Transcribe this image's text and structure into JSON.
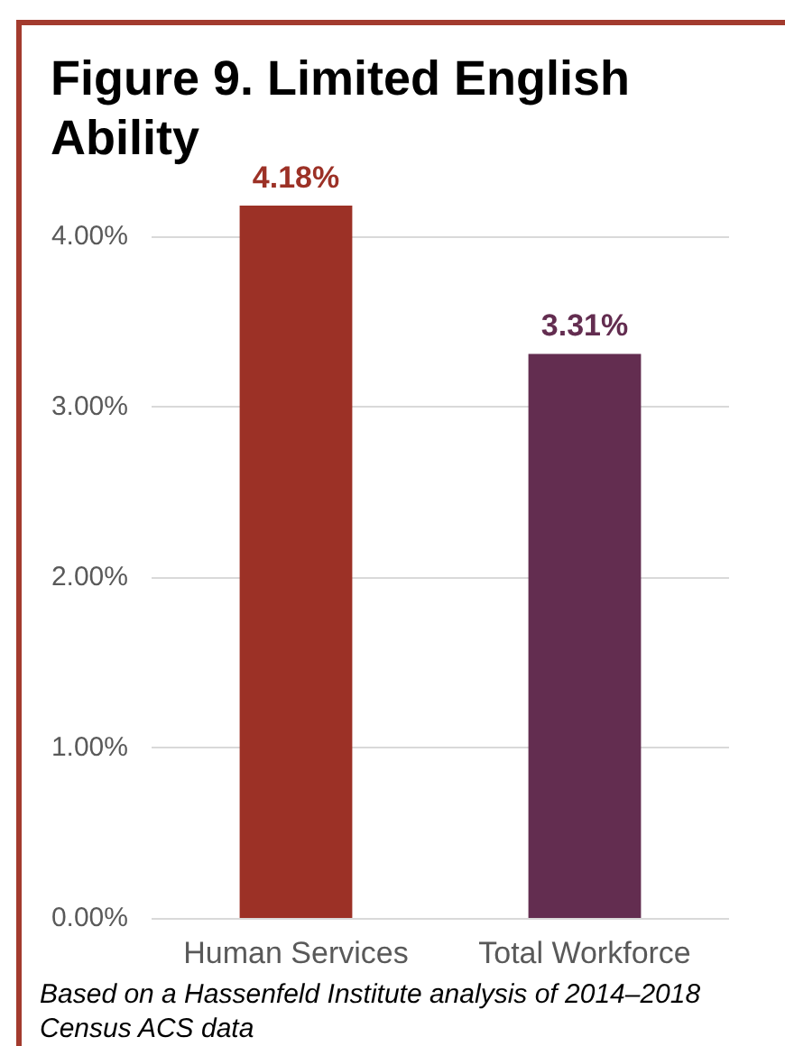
{
  "chart_data": {
    "type": "bar",
    "title": "Figure 9. Limited English Ability",
    "categories": [
      "Human Services",
      "Total Workforce"
    ],
    "values": [
      4.18,
      3.31
    ],
    "colors": [
      "#9c3126",
      "#632d50"
    ],
    "value_labels": [
      "4.18%",
      "3.31%"
    ],
    "ylim": [
      0,
      4.18
    ],
    "yticks": [
      {
        "value": 0,
        "label": "0.00%"
      },
      {
        "value": 1,
        "label": "1.00%"
      },
      {
        "value": 2,
        "label": "2.00%"
      },
      {
        "value": 3,
        "label": "3.00%"
      },
      {
        "value": 4,
        "label": "4.00%"
      }
    ],
    "grid": "y",
    "annotations": [
      "Based on a Hassenfeld Institute analysis of 2014–2018 Census ACS data"
    ]
  }
}
